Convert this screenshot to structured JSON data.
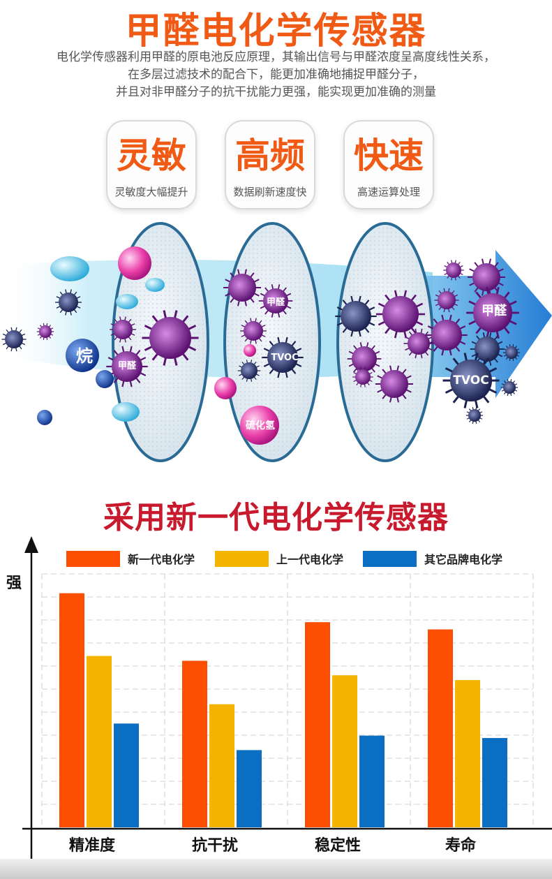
{
  "header": {
    "title": "甲醛电化学传感器",
    "intro_lines": [
      "电化学传感器利用甲醛的原电池反应原理，其输出信号与甲醛浓度呈高度线性关系，",
      "在多层过滤技术的配合下，能更加准确地捕捉甲醛分子，",
      "并且对非甲醛分子的抗干扰能力更强，能实现更加准确的测量"
    ]
  },
  "features": [
    {
      "title": "灵敏",
      "subtitle": "灵敏度大幅提升"
    },
    {
      "title": "高频",
      "subtitle": "数据刷新速度快"
    },
    {
      "title": "快速",
      "subtitle": "高速运算处理"
    }
  ],
  "illustration": {
    "labels": {
      "alkane": "烷",
      "formaldehyde_1": "甲醛",
      "formaldehyde_2": "甲醛",
      "tvoc_1": "TVOC",
      "h2s": "硫化氢",
      "formaldehyde_out": "甲醛",
      "tvoc_out": "TVOC"
    }
  },
  "section_title": "采用新一代电化学传感器",
  "chart_data": {
    "type": "bar",
    "title": "采用新一代电化学传感器",
    "ylabel": "强",
    "xlabel": "",
    "categories": [
      "精准度",
      "抗干扰",
      "稳定性",
      "寿命"
    ],
    "series": [
      {
        "name": "新一代电化学",
        "color": "#fc4f02",
        "values": [
          9.7,
          6.9,
          8.5,
          8.2
        ]
      },
      {
        "name": "上一代电化学",
        "color": "#f4b400",
        "values": [
          7.1,
          5.1,
          6.3,
          6.1
        ]
      },
      {
        "name": "其它品牌电化学",
        "color": "#0a6fc2",
        "values": [
          4.3,
          3.2,
          3.8,
          3.7
        ]
      }
    ],
    "ylim": [
      0,
      10.5
    ],
    "grid": true,
    "legend_position": "top"
  }
}
